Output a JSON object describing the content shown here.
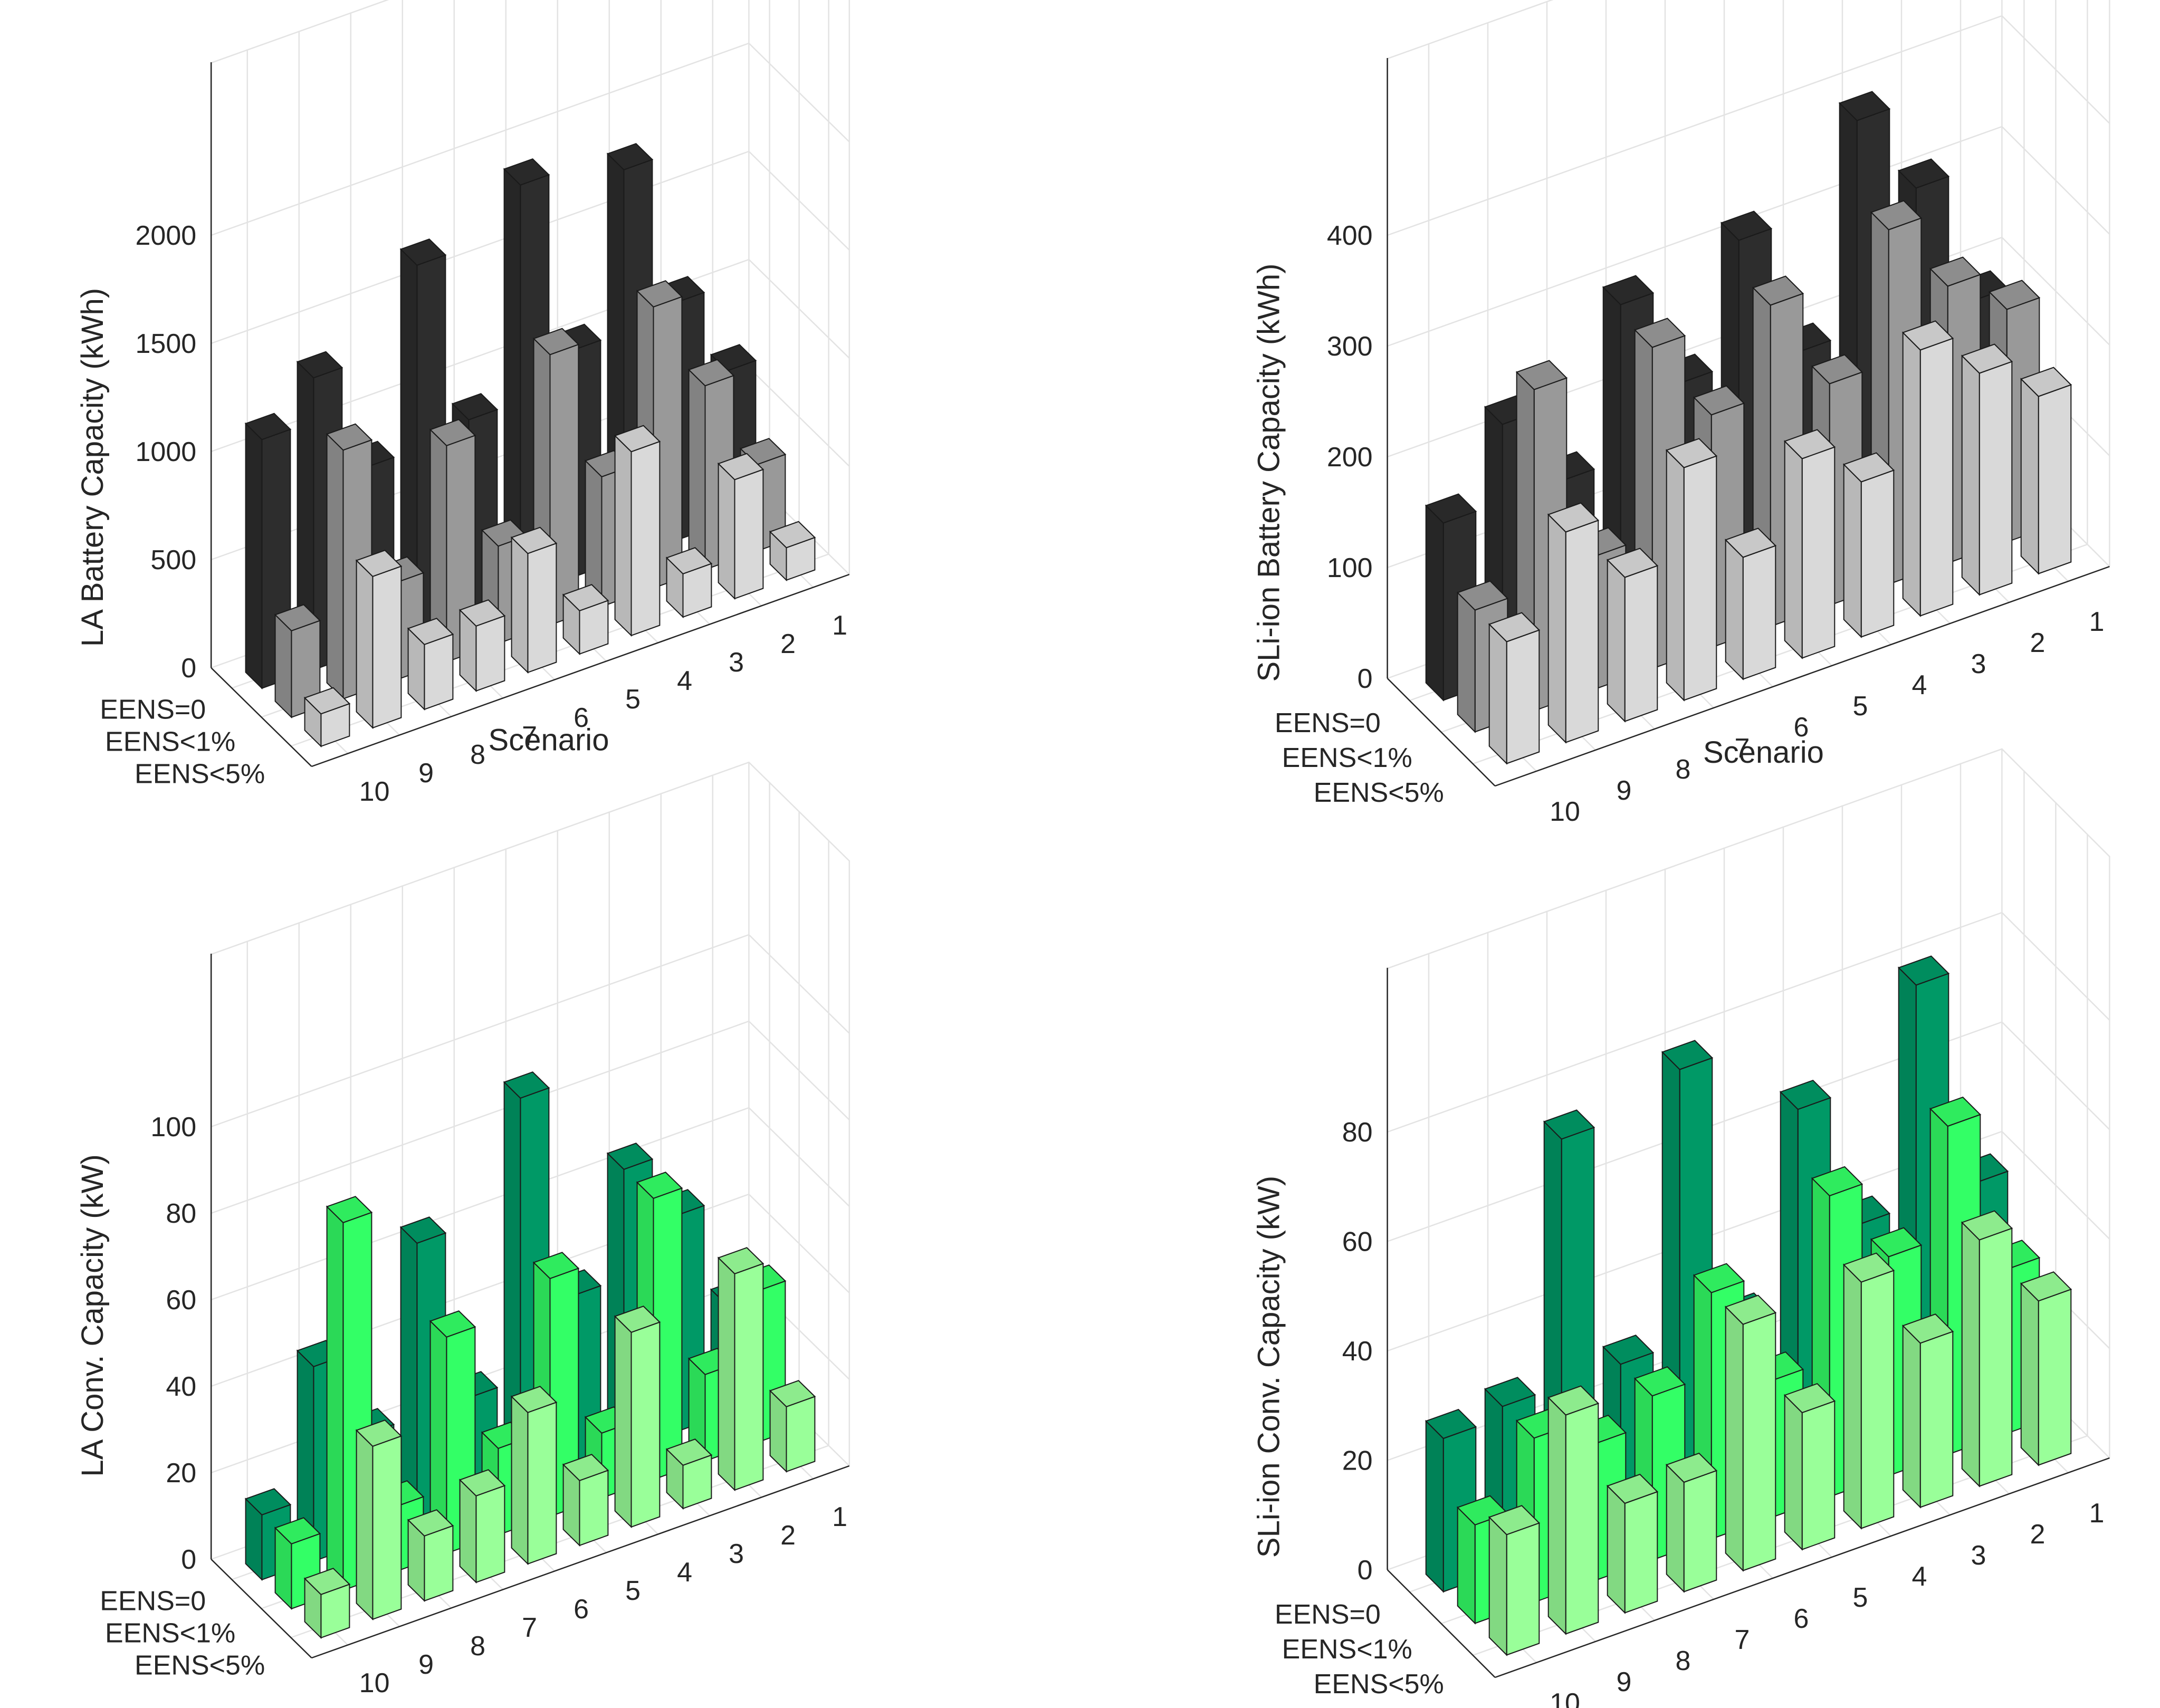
{
  "chart_data": [
    {
      "type": "bar3d",
      "id": "la-battery",
      "title": "",
      "zlabel": "LA Battery Capacity (kWh)",
      "xlabel": "Scenario",
      "ylabel": "",
      "zticks": [
        "0",
        "500",
        "1000",
        "1500",
        "2000"
      ],
      "ztick_values": [
        0,
        500,
        1000,
        1500,
        2000
      ],
      "zlim": [
        0,
        2800
      ],
      "categories": [
        "1",
        "2",
        "3",
        "4",
        "5",
        "6",
        "7",
        "8",
        "9",
        "10"
      ],
      "series": [
        {
          "name": "EENS=0",
          "color": "#2d2d2d",
          "values": [
            700,
            1100,
            1800,
            1050,
            1900,
            900,
            1700,
            850,
            1350,
            1150
          ]
        },
        {
          "name": "EENS<1%",
          "color": "#999999",
          "values": [
            400,
            850,
            1300,
            600,
            1250,
            450,
            1000,
            450,
            1150,
            400
          ]
        },
        {
          "name": "EENS<5%",
          "color": "#d9d9d9",
          "values": [
            150,
            550,
            200,
            850,
            200,
            550,
            300,
            300,
            700,
            150
          ]
        }
      ]
    },
    {
      "type": "bar3d",
      "id": "sli-battery",
      "title": "",
      "zlabel": "SLi-ion Battery Capacity (kWh)",
      "xlabel": "Scenario",
      "ylabel": "",
      "zticks": [
        "0",
        "100",
        "200",
        "300",
        "400"
      ],
      "ztick_values": [
        0,
        100,
        200,
        300,
        400
      ],
      "zlim": [
        0,
        560
      ],
      "categories": [
        "1",
        "2",
        "3",
        "4",
        "5",
        "6",
        "7",
        "8",
        "9",
        "10"
      ],
      "series": [
        {
          "name": "EENS=0",
          "color": "#2d2d2d",
          "values": [
            190,
            310,
            390,
            200,
            320,
            210,
            300,
            160,
            230,
            160
          ]
        },
        {
          "name": "EENS<1%",
          "color": "#999999",
          "values": [
            210,
            250,
            320,
            200,
            290,
            210,
            290,
            120,
            290,
            110
          ]
        },
        {
          "name": "EENS<5%",
          "color": "#d9d9d9",
          "values": [
            160,
            200,
            240,
            140,
            180,
            110,
            210,
            130,
            190,
            110
          ]
        }
      ]
    },
    {
      "type": "bar3d",
      "id": "la-converter",
      "title": "",
      "zlabel": "LA Conv. Capacity (kW)",
      "xlabel": "",
      "ylabel": "",
      "zticks": [
        "0",
        "20",
        "40",
        "60",
        "80",
        "100"
      ],
      "ztick_values": [
        0,
        20,
        40,
        60,
        80,
        100
      ],
      "zlim": [
        0,
        140
      ],
      "categories": [
        "1",
        "2",
        "3",
        "4",
        "5",
        "6",
        "7",
        "8",
        "9",
        "10"
      ],
      "series": [
        {
          "name": "EENS=0",
          "color": "#009966",
          "values": [
            25,
            50,
            65,
            40,
            90,
            25,
            65,
            25,
            45,
            15
          ]
        },
        {
          "name": "EENS<1%",
          "color": "#33ff66",
          "values": [
            35,
            20,
            65,
            15,
            55,
            20,
            50,
            15,
            85,
            15
          ]
        },
        {
          "name": "EENS<5%",
          "color": "#99ff99",
          "values": [
            15,
            50,
            10,
            45,
            15,
            35,
            20,
            15,
            40,
            10
          ]
        }
      ]
    },
    {
      "type": "bar3d",
      "id": "sli-converter",
      "title": "",
      "zlabel": "SLi-ion Conv. Capacity (kW)",
      "xlabel": "",
      "ylabel": "",
      "zticks": [
        "0",
        "20",
        "40",
        "60",
        "80"
      ],
      "ztick_values": [
        0,
        20,
        40,
        60,
        80
      ],
      "zlim": [
        0,
        110
      ],
      "categories": [
        "1",
        "2",
        "3",
        "4",
        "5",
        "6",
        "7",
        "8",
        "9",
        "10"
      ],
      "series": [
        {
          "name": "EENS=0",
          "color": "#009966",
          "values": [
            40,
            80,
            40,
            65,
            30,
            80,
            30,
            75,
            30,
            28
          ]
        },
        {
          "name": "EENS<1%",
          "color": "#33ff66",
          "values": [
            30,
            60,
            40,
            55,
            25,
            45,
            30,
            25,
            30,
            18
          ]
        },
        {
          "name": "EENS<5%",
          "color": "#99ff99",
          "values": [
            30,
            45,
            30,
            45,
            25,
            45,
            20,
            20,
            40,
            22
          ]
        }
      ]
    }
  ]
}
